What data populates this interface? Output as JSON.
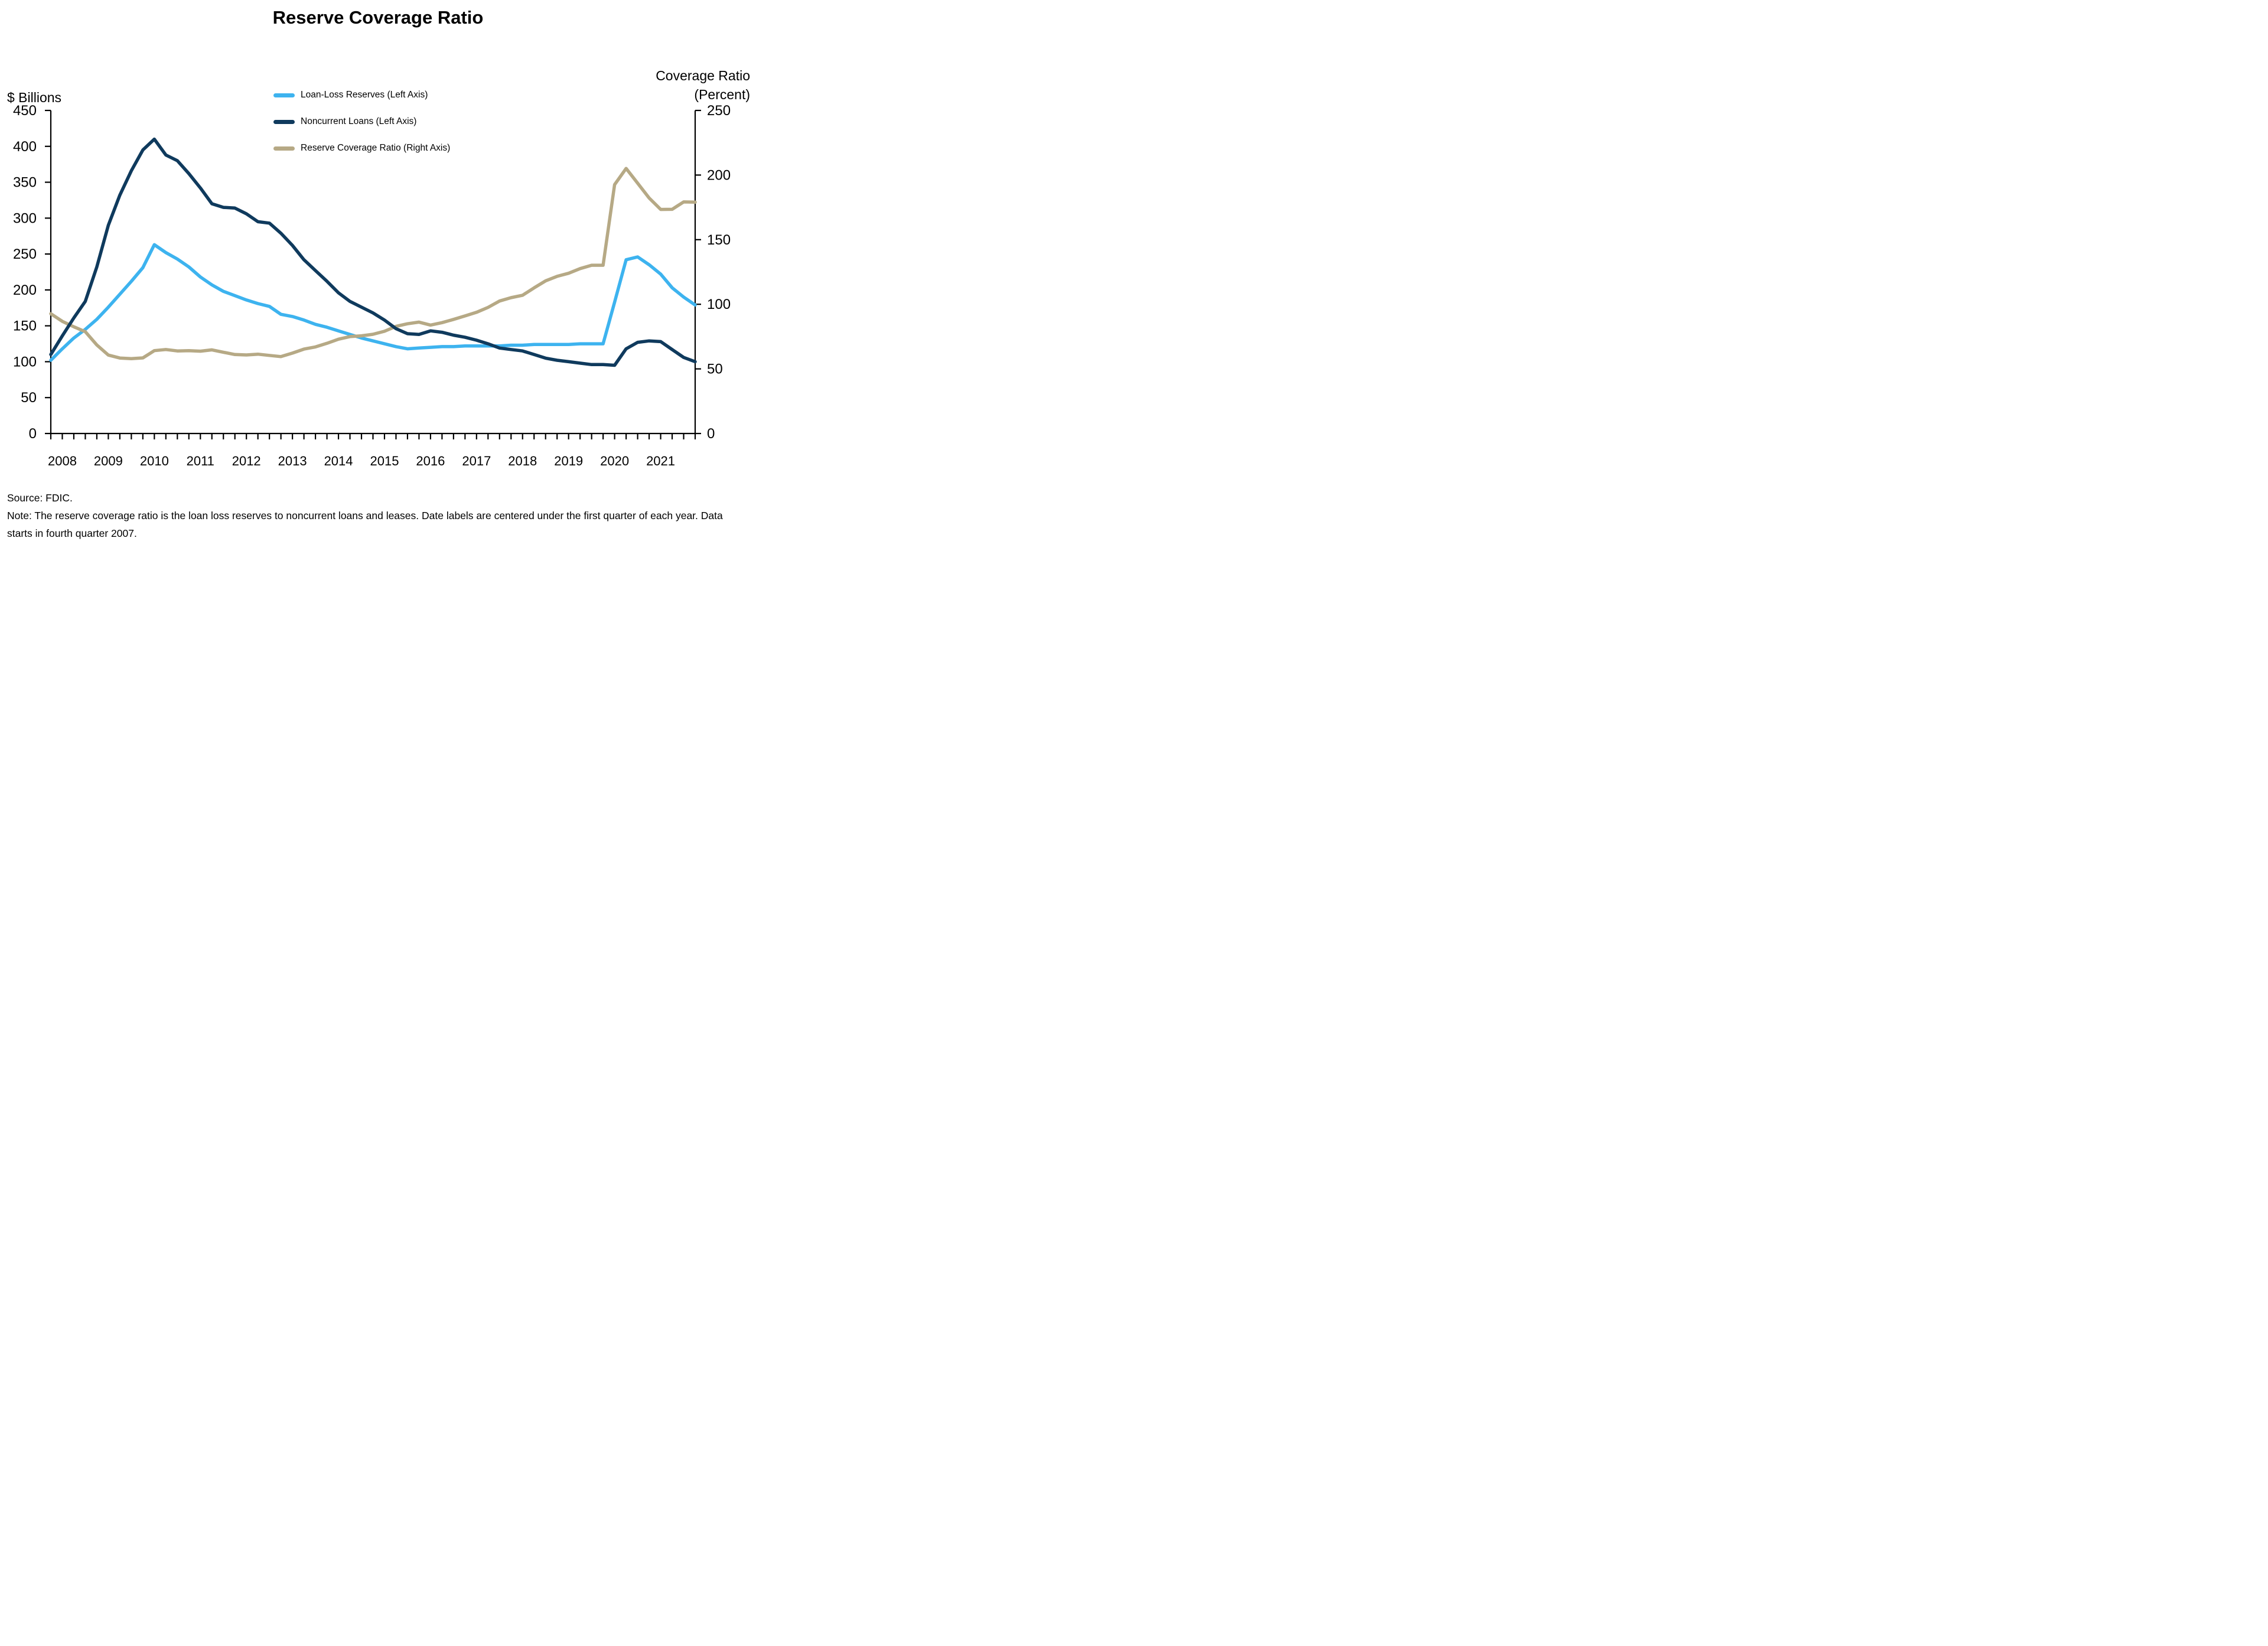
{
  "title": "Reserve Coverage Ratio",
  "left_axis_label": "$ Billions",
  "right_axis_label_line1": "Coverage Ratio",
  "right_axis_label_line2": "(Percent)",
  "source": "Source: FDIC.",
  "note": "Note: The reserve coverage ratio is the loan loss reserves to noncurrent loans and leases. Date labels are centered under the first quarter of each year. Data starts in fourth quarter 2007.",
  "colors": {
    "loan_loss_reserves": "#3db3ef",
    "noncurrent_loans": "#0f3a5d",
    "reserve_coverage_ratio": "#b6a985",
    "axis": "#000000",
    "text": "#000000",
    "background": "#ffffff"
  },
  "chart_data": {
    "type": "line",
    "title": "Reserve Coverage Ratio",
    "frequency": "quarterly",
    "x_start": "2007 Q4",
    "x": [
      "2007 Q4",
      "2008 Q1",
      "2008 Q2",
      "2008 Q3",
      "2008 Q4",
      "2009 Q1",
      "2009 Q2",
      "2009 Q3",
      "2009 Q4",
      "2010 Q1",
      "2010 Q2",
      "2010 Q3",
      "2010 Q4",
      "2011 Q1",
      "2011 Q2",
      "2011 Q3",
      "2011 Q4",
      "2012 Q1",
      "2012 Q2",
      "2012 Q3",
      "2012 Q4",
      "2013 Q1",
      "2013 Q2",
      "2013 Q3",
      "2013 Q4",
      "2014 Q1",
      "2014 Q2",
      "2014 Q3",
      "2014 Q4",
      "2015 Q1",
      "2015 Q2",
      "2015 Q3",
      "2015 Q4",
      "2016 Q1",
      "2016 Q2",
      "2016 Q3",
      "2016 Q4",
      "2017 Q1",
      "2017 Q2",
      "2017 Q3",
      "2017 Q4",
      "2018 Q1",
      "2018 Q2",
      "2018 Q3",
      "2018 Q4",
      "2019 Q1",
      "2019 Q2",
      "2019 Q3",
      "2019 Q4",
      "2020 Q1",
      "2020 Q2",
      "2020 Q3",
      "2020 Q4",
      "2021 Q1",
      "2021 Q2",
      "2021 Q3",
      "2021 Q4"
    ],
    "x_tick_labels": [
      "2008",
      "2009",
      "2010",
      "2011",
      "2012",
      "2013",
      "2014",
      "2015",
      "2016",
      "2017",
      "2018",
      "2019",
      "2020",
      "2021"
    ],
    "x_tick_note": "year labels centered under first quarter of each year; small ticks quarterly",
    "left_axis": {
      "label": "$ Billions",
      "min": 0,
      "max": 450,
      "tick_step": 50,
      "ticks": [
        0,
        50,
        100,
        150,
        200,
        250,
        300,
        350,
        400,
        450
      ]
    },
    "right_axis": {
      "label": "Coverage Ratio (Percent)",
      "min": 0,
      "max": 250,
      "tick_step": 50,
      "ticks": [
        0,
        50,
        100,
        150,
        200,
        250
      ]
    },
    "grid": false,
    "legend_position": "top-center",
    "series": [
      {
        "name": "Loan-Loss Reserves (Left Axis)",
        "axis": "left",
        "color": "#3db3ef",
        "values": [
          102,
          118,
          133,
          145,
          159,
          176,
          194,
          212,
          231,
          263,
          252,
          243,
          232,
          218,
          207,
          198,
          192,
          186,
          181,
          177,
          166,
          163,
          158,
          152,
          148,
          143,
          138,
          133,
          129,
          125,
          121,
          118,
          119,
          120,
          121,
          121,
          122,
          122,
          122,
          122,
          123,
          123,
          124,
          124,
          124,
          124,
          125,
          125,
          125,
          183,
          242,
          246,
          235,
          222,
          203,
          190,
          179
        ]
      },
      {
        "name": "Noncurrent Loans (Left Axis)",
        "axis": "left",
        "color": "#0f3a5d",
        "values": [
          110,
          136,
          161,
          184,
          232,
          290,
          332,
          366,
          395,
          410,
          388,
          380,
          362,
          342,
          320,
          315,
          314,
          306,
          295,
          293,
          279,
          262,
          242,
          227,
          212,
          196,
          184,
          176,
          168,
          158,
          146,
          139,
          138,
          143,
          141,
          137,
          134,
          130,
          125,
          119,
          117,
          115,
          110,
          105,
          102,
          100,
          98,
          96,
          96,
          95,
          118,
          127,
          129,
          128,
          117,
          106,
          100
        ]
      },
      {
        "name": "Reserve Coverage Ratio (Right Axis)",
        "axis": "right",
        "color": "#b6a985",
        "values": [
          92.7,
          86.8,
          82.6,
          78.8,
          68.5,
          60.7,
          58.4,
          57.9,
          58.5,
          64.1,
          65.0,
          63.9,
          64.1,
          63.7,
          64.7,
          62.9,
          61.1,
          60.8,
          61.4,
          60.4,
          59.5,
          62.2,
          65.3,
          67.0,
          69.8,
          73.0,
          75.0,
          75.6,
          76.8,
          79.1,
          82.9,
          84.9,
          86.2,
          83.9,
          85.8,
          88.3,
          91.0,
          93.8,
          97.6,
          102.5,
          105.1,
          107.0,
          112.7,
          118.1,
          121.6,
          124.0,
          127.6,
          130.2,
          130.2,
          192.6,
          205.1,
          193.7,
          182.2,
          173.4,
          173.5,
          179.2,
          179.0
        ]
      }
    ]
  }
}
